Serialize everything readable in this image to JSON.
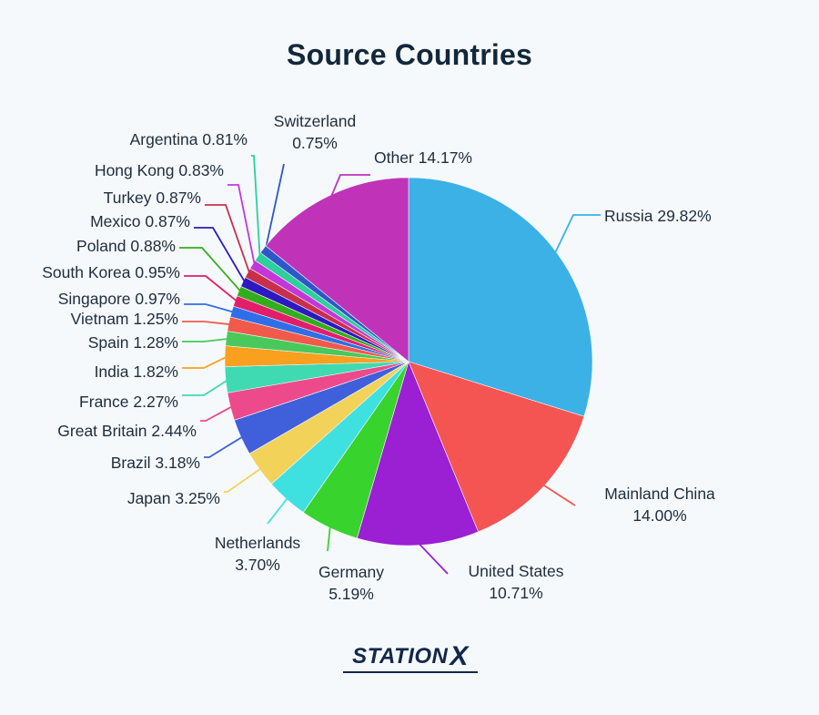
{
  "chart_data": {
    "type": "pie",
    "title": "Source Countries",
    "slices": [
      {
        "label": "Russia",
        "pct": "29.82%",
        "value": 29.82,
        "color": "#3cb1e6"
      },
      {
        "label": "Mainland China",
        "pct": "14.00%",
        "value": 14.0,
        "color": "#f45452"
      },
      {
        "label": "United States",
        "pct": "10.71%",
        "value": 10.71,
        "color": "#9b1fd3"
      },
      {
        "label": "Germany",
        "pct": "5.19%",
        "value": 5.19,
        "color": "#39d32e"
      },
      {
        "label": "Netherlands",
        "pct": "3.70%",
        "value": 3.7,
        "color": "#3fe0e0"
      },
      {
        "label": "Japan",
        "pct": "3.25%",
        "value": 3.25,
        "color": "#f3d25a"
      },
      {
        "label": "Brazil",
        "pct": "3.18%",
        "value": 3.18,
        "color": "#3f5fdb"
      },
      {
        "label": "Great Britain",
        "pct": "2.44%",
        "value": 2.44,
        "color": "#ed4a8c"
      },
      {
        "label": "France",
        "pct": "2.27%",
        "value": 2.27,
        "color": "#3fd9b2"
      },
      {
        "label": "India",
        "pct": "1.82%",
        "value": 1.82,
        "color": "#f9a01f"
      },
      {
        "label": "Spain",
        "pct": "1.28%",
        "value": 1.28,
        "color": "#49c85b"
      },
      {
        "label": "Vietnam",
        "pct": "1.25%",
        "value": 1.25,
        "color": "#f15a4a"
      },
      {
        "label": "Singapore",
        "pct": "0.97%",
        "value": 0.97,
        "color": "#2f6ee8"
      },
      {
        "label": "South Korea",
        "pct": "0.95%",
        "value": 0.95,
        "color": "#e21d6a"
      },
      {
        "label": "Poland",
        "pct": "0.88%",
        "value": 0.88,
        "color": "#34ad1c"
      },
      {
        "label": "Mexico",
        "pct": "0.87%",
        "value": 0.87,
        "color": "#2c19c2"
      },
      {
        "label": "Turkey",
        "pct": "0.87%",
        "value": 0.87,
        "color": "#c8304a"
      },
      {
        "label": "Hong Kong",
        "pct": "0.83%",
        "value": 0.83,
        "color": "#c436d9"
      },
      {
        "label": "Argentina",
        "pct": "0.81%",
        "value": 0.81,
        "color": "#2dcf9c"
      },
      {
        "label": "Switzerland",
        "pct": "0.75%",
        "value": 0.75,
        "color": "#2f57c9"
      },
      {
        "label": "Other",
        "pct": "14.17%",
        "value": 14.17,
        "color": "#c033b8"
      }
    ]
  },
  "brand": {
    "logo_text": "STATION",
    "logo_x": "X"
  }
}
